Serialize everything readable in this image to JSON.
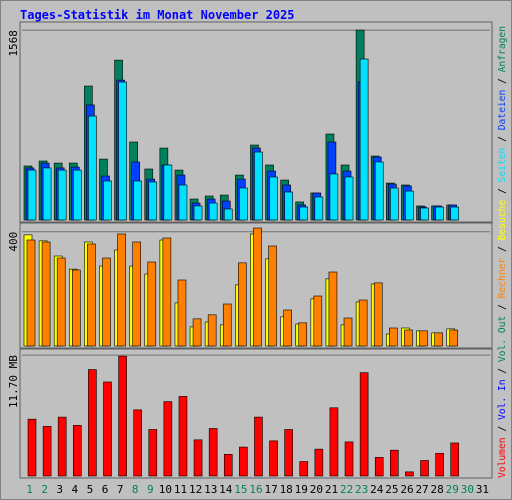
{
  "chart_data": [
    {
      "type": "bar",
      "title": "Tages-Statistik im Monat November 2025",
      "ylim": [
        0,
        1610
      ],
      "yticks": [
        1568
      ],
      "series": [
        {
          "name": "Anfragen",
          "color": "#00805c",
          "values": [
            446,
            487,
            470,
            470,
            1106,
            503,
            1320,
            644,
            421,
            594,
            412,
            173,
            198,
            206,
            371,
            619,
            454,
            330,
            149,
            223,
            710,
            454,
            1568,
            528,
            305,
            289,
            116,
            116,
            124,
            0,
            0
          ]
        },
        {
          "name": "Dateien",
          "color": "#0040ff",
          "values": [
            430,
            470,
            430,
            437,
            950,
            363,
            1155,
            479,
            338,
            454,
            371,
            140,
            173,
            157,
            338,
            594,
            404,
            289,
            124,
            223,
            644,
            404,
            1139,
            520,
            297,
            281,
            107,
            116,
            124,
            0,
            0
          ]
        },
        {
          "name": "Seiten",
          "color": "#00e0ff",
          "values": [
            412,
            430,
            412,
            412,
            858,
            322,
            1139,
            322,
            314,
            454,
            289,
            116,
            140,
            91,
            264,
            561,
            355,
            231,
            107,
            190,
            380,
            355,
            1329,
            479,
            264,
            239,
            99,
            107,
            107,
            0,
            0
          ]
        }
      ]
    },
    {
      "type": "bar",
      "ylim": [
        0,
        420
      ],
      "yticks": [
        400
      ],
      "series": [
        {
          "name": "Besuche",
          "color": "#ffff00",
          "values": [
            389,
            368,
            315,
            269,
            364,
            280,
            336,
            280,
            252,
            371,
            151,
            67,
            84,
            74,
            214,
            392,
            305,
            102,
            77,
            165,
            235,
            74,
            154,
            217,
            42,
            63,
            53,
            46,
            60,
            0,
            0
          ]
        },
        {
          "name": "Rechner",
          "color": "#ff8000",
          "values": [
            371,
            364,
            308,
            266,
            357,
            308,
            392,
            364,
            294,
            378,
            231,
            95,
            109,
            147,
            291,
            413,
            350,
            126,
            81,
            175,
            259,
            98,
            161,
            221,
            63,
            56,
            53,
            46,
            56,
            0,
            0
          ]
        }
      ]
    },
    {
      "type": "bar",
      "ylim": [
        0,
        12
      ],
      "yticks": [
        {
          "value": 11.7,
          "label": "11.70 MB"
        }
      ],
      "categories": [
        "1",
        "2",
        "3",
        "4",
        "5",
        "6",
        "7",
        "8",
        "9",
        "10",
        "11",
        "12",
        "13",
        "14",
        "15",
        "16",
        "17",
        "18",
        "19",
        "20",
        "21",
        "22",
        "23",
        "24",
        "25",
        "26",
        "27",
        "28",
        "29",
        "30",
        "31"
      ],
      "highlight_categories": [
        0,
        1,
        7,
        8,
        14,
        15,
        21,
        22,
        28,
        29
      ],
      "highlight_color": "#00805c",
      "series": [
        {
          "name": "Vol. Out",
          "color": "#00805c",
          "values": [
            0,
            0,
            0,
            0,
            0,
            0,
            0,
            0,
            0,
            0,
            0,
            0,
            0,
            0,
            0,
            0,
            0,
            0,
            0,
            0,
            0,
            0,
            0,
            0,
            0,
            0,
            0,
            0,
            0,
            0,
            0
          ]
        },
        {
          "name": "Vol. In",
          "color": "#0000ff",
          "values": [
            0,
            0,
            0,
            0,
            0,
            0,
            0,
            0,
            0,
            0,
            0,
            0,
            0,
            0,
            0,
            0,
            0,
            0,
            0,
            0,
            0,
            0,
            0,
            0,
            0,
            0,
            0,
            0,
            0,
            0,
            0
          ]
        },
        {
          "name": "Volumen",
          "color": "#ff0000",
          "values": [
            5.5,
            4.8,
            5.7,
            4.9,
            10.3,
            9.1,
            11.6,
            6.4,
            4.5,
            7.2,
            7.7,
            3.5,
            4.6,
            2.1,
            2.8,
            5.7,
            3.4,
            4.5,
            1.4,
            2.6,
            6.6,
            3.3,
            10.0,
            1.8,
            2.5,
            0.4,
            1.5,
            2.2,
            3.2,
            0,
            0
          ]
        }
      ]
    }
  ],
  "legend_separator": " / "
}
